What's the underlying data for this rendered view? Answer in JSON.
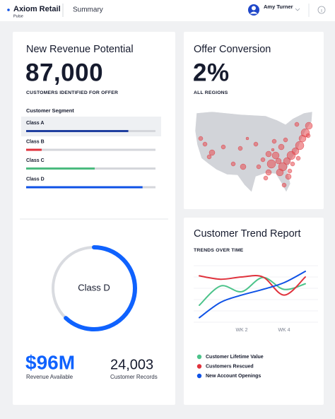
{
  "header": {
    "brand": "Axiom Retail",
    "product": "Pulse",
    "page": "Summary",
    "user": "Amy Turner"
  },
  "revenue_card": {
    "title": "New Revenue Potential",
    "value": "87,000",
    "caption": "CUSTOMERS IDENTIFIED FOR OFFER",
    "segment_title": "Customer Segment",
    "xlim": [
      0,
      100
    ],
    "segments": [
      {
        "name": "Class A",
        "value": 79,
        "color": "#1f3f9f"
      },
      {
        "name": "Class B",
        "value": 12,
        "color": "#e0323c"
      },
      {
        "name": "Class C",
        "value": 53,
        "color": "#4cbb7f"
      },
      {
        "name": "Class D",
        "value": 90,
        "color": "#0f52e6"
      }
    ],
    "donut": {
      "label": "Class D",
      "value": 62,
      "range": [
        0,
        100
      ],
      "color": "#0f62fe",
      "track": "#d9dbe0"
    },
    "stats": [
      {
        "value": "$96M",
        "label": "Revenue Available"
      },
      {
        "value": "24,003",
        "label": "Customer Records"
      }
    ]
  },
  "conversion_card": {
    "title": "Offer Conversion",
    "value": "2%",
    "caption": "ALL REGIONS"
  },
  "chart_data": {
    "type": "line",
    "title": "Customer Trend Report",
    "subtitle": "TRENDS OVER TIME",
    "categories": [
      null,
      null,
      "WK 2",
      null,
      "WK 4",
      null
    ],
    "ylim": [
      0,
      100
    ],
    "series": [
      {
        "name": "Customer Lifetime Value",
        "color": "#4cc38a",
        "values": [
          30,
          64,
          54,
          79,
          58,
          68
        ]
      },
      {
        "name": "Customers Rescued",
        "color": "#e0323c",
        "values": [
          82,
          76,
          80,
          80,
          48,
          80
        ]
      },
      {
        "name": "New Account Openings",
        "color": "#0f52e6",
        "values": [
          8,
          35,
          48,
          58,
          70,
          90
        ]
      }
    ]
  }
}
